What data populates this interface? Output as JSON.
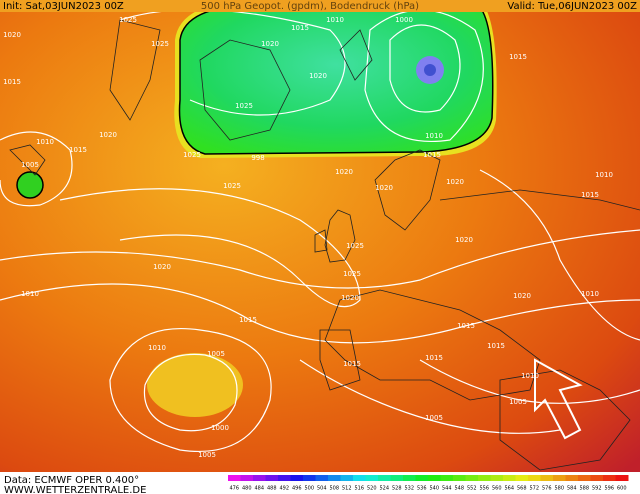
{
  "header": {
    "init": "Init: Sat,03JUN2023 00Z",
    "title": "500 hPa Geopot. (gpdm), Bodendruck (hPa)",
    "valid": "Valid: Tue,06JUN2023 00Z"
  },
  "footer": {
    "source": "Data: ECMWF OPER 0.400°",
    "site": "WWW.WETTERZENTRALE.DE"
  },
  "isobar_labels": [
    1020,
    1015,
    1025,
    1025,
    1020,
    1015,
    1010,
    1000,
    1015,
    1020,
    1025,
    1010,
    1015,
    1020,
    1010,
    1015,
    1005,
    998,
    1025,
    1025,
    1020,
    1020,
    1020,
    1010,
    1015,
    1020,
    1025,
    1025,
    1020,
    1010,
    1020,
    1015,
    1020,
    1015,
    1015,
    1015,
    1015,
    1010,
    1005,
    1000,
    1005,
    1010,
    1005,
    1005,
    1010
  ],
  "colorbar": {
    "labels": [
      476,
      480,
      484,
      488,
      492,
      496,
      500,
      504,
      508,
      512,
      516,
      520,
      524,
      528,
      532,
      536,
      540,
      544,
      548,
      552,
      556,
      560,
      564,
      568,
      572,
      576,
      580,
      584,
      588,
      592,
      596,
      600
    ]
  }
}
